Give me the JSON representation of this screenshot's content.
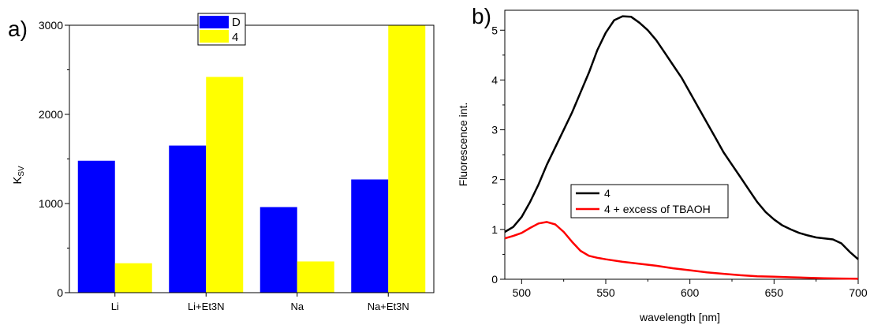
{
  "panel_a_label": "a)",
  "panel_b_label": "b)",
  "chart_data": [
    {
      "type": "bar",
      "categories": [
        "Li",
        "Li+Et3N",
        "Na",
        "Na+Et3N"
      ],
      "series": [
        {
          "name": "D",
          "color": "#0000ff",
          "values": [
            1480,
            1650,
            960,
            1270
          ]
        },
        {
          "name": "4",
          "color": "#ffff00",
          "values": [
            330,
            2420,
            350,
            3000
          ]
        }
      ],
      "xlabel": "",
      "ylabel": "K",
      "ylabel_sub": "SV",
      "ylim": [
        0,
        3000
      ],
      "yticks": [
        0,
        1000,
        2000,
        3000
      ],
      "grid": false,
      "legend_position": "top-center"
    },
    {
      "type": "line",
      "xlabel": "wavelength [nm]",
      "ylabel": "Fluorescence int.",
      "xlim": [
        490,
        700
      ],
      "ylim": [
        0,
        5.4
      ],
      "xticks": [
        500,
        550,
        600,
        650,
        700
      ],
      "yticks": [
        0,
        1,
        2,
        3,
        4,
        5
      ],
      "grid": false,
      "legend_position": "center-left",
      "series": [
        {
          "name": "4",
          "color": "#000000",
          "x": [
            490,
            495,
            500,
            505,
            510,
            515,
            520,
            525,
            530,
            535,
            540,
            545,
            550,
            555,
            560,
            565,
            570,
            575,
            580,
            585,
            590,
            595,
            600,
            605,
            610,
            615,
            620,
            625,
            630,
            635,
            640,
            645,
            650,
            655,
            660,
            665,
            670,
            675,
            680,
            685,
            690,
            695,
            700
          ],
          "y": [
            0.95,
            1.05,
            1.25,
            1.55,
            1.9,
            2.3,
            2.65,
            3.0,
            3.35,
            3.75,
            4.15,
            4.6,
            4.95,
            5.2,
            5.28,
            5.27,
            5.15,
            5.0,
            4.8,
            4.55,
            4.3,
            4.05,
            3.75,
            3.45,
            3.15,
            2.85,
            2.55,
            2.3,
            2.05,
            1.8,
            1.55,
            1.35,
            1.2,
            1.08,
            1.0,
            0.93,
            0.88,
            0.84,
            0.82,
            0.8,
            0.72,
            0.55,
            0.4
          ]
        },
        {
          "name": "4 + excess of TBAOH",
          "color": "#ff0000",
          "x": [
            490,
            495,
            500,
            505,
            510,
            515,
            520,
            525,
            530,
            535,
            540,
            545,
            550,
            560,
            570,
            580,
            590,
            600,
            610,
            620,
            630,
            640,
            650,
            660,
            670,
            680,
            690,
            700
          ],
          "y": [
            0.82,
            0.87,
            0.93,
            1.03,
            1.12,
            1.15,
            1.1,
            0.95,
            0.75,
            0.57,
            0.47,
            0.43,
            0.4,
            0.35,
            0.31,
            0.27,
            0.22,
            0.18,
            0.14,
            0.11,
            0.08,
            0.06,
            0.05,
            0.04,
            0.03,
            0.02,
            0.015,
            0.01
          ]
        }
      ]
    }
  ]
}
